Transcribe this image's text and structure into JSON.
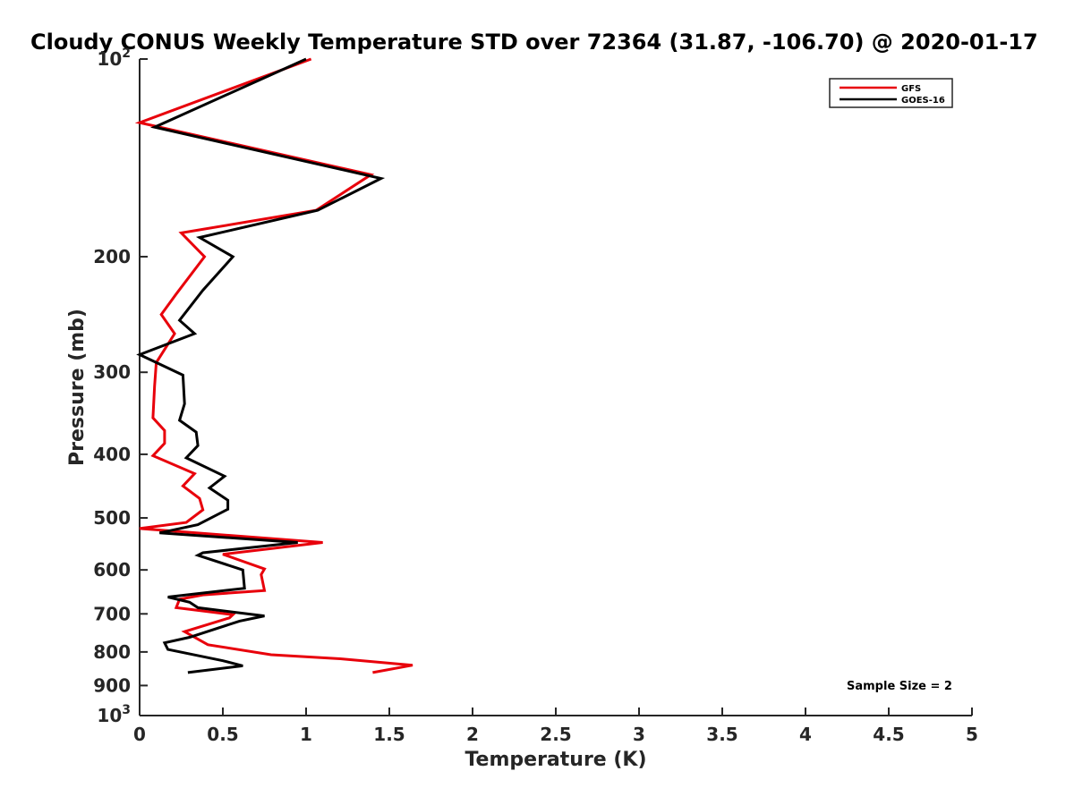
{
  "chart_data": {
    "type": "line",
    "title": "Cloudy CONUS Weekly Temperature STD over 72364 (31.87, -106.70) @ 2020-01-17",
    "xlabel": "Temperature (K)",
    "ylabel": "Pressure (mb)",
    "xlim": [
      0,
      5
    ],
    "ylim": [
      100,
      1000
    ],
    "y_scale": "log",
    "y_reversed": true,
    "x_ticks": [
      0,
      0.5,
      1,
      1.5,
      2,
      2.5,
      3,
      3.5,
      4,
      4.5,
      5
    ],
    "x_tick_labels": [
      "0",
      "0.5",
      "1",
      "1.5",
      "2",
      "2.5",
      "3",
      "3.5",
      "4",
      "4.5",
      "5"
    ],
    "y_ticks": [
      100,
      200,
      300,
      400,
      500,
      600,
      700,
      800,
      900,
      1000
    ],
    "y_tick_labels": [
      {
        "base": "10",
        "exp": "2"
      },
      {
        "base": "200",
        "exp": ""
      },
      {
        "base": "300",
        "exp": ""
      },
      {
        "base": "400",
        "exp": ""
      },
      {
        "base": "500",
        "exp": ""
      },
      {
        "base": "600",
        "exp": ""
      },
      {
        "base": "700",
        "exp": ""
      },
      {
        "base": "800",
        "exp": ""
      },
      {
        "base": "900",
        "exp": ""
      },
      {
        "base": "10",
        "exp": "3"
      }
    ],
    "grid": false,
    "legend_position": "top-right",
    "annotation": "Sample Size = 2",
    "series": [
      {
        "name": "GFS",
        "color": "#e8000b",
        "points": [
          [
            1.03,
            100
          ],
          [
            0.0,
            125
          ],
          [
            1.39,
            150
          ],
          [
            1.06,
            170
          ],
          [
            0.25,
            184
          ],
          [
            0.39,
            200
          ],
          [
            0.22,
            228
          ],
          [
            0.13,
            245
          ],
          [
            0.21,
            262
          ],
          [
            0.1,
            290
          ],
          [
            0.09,
            315
          ],
          [
            0.08,
            352
          ],
          [
            0.15,
            368
          ],
          [
            0.15,
            385
          ],
          [
            0.08,
            402
          ],
          [
            0.33,
            428
          ],
          [
            0.26,
            447
          ],
          [
            0.36,
            467
          ],
          [
            0.38,
            486
          ],
          [
            0.28,
            508
          ],
          [
            0.0,
            519
          ],
          [
            1.1,
            545
          ],
          [
            0.5,
            568
          ],
          [
            0.75,
            598
          ],
          [
            0.73,
            610
          ],
          [
            0.75,
            645
          ],
          [
            0.38,
            655
          ],
          [
            0.24,
            665
          ],
          [
            0.22,
            685
          ],
          [
            0.56,
            702
          ],
          [
            0.54,
            710
          ],
          [
            0.27,
            745
          ],
          [
            0.41,
            780
          ],
          [
            0.79,
            808
          ],
          [
            1.22,
            820
          ],
          [
            1.64,
            838
          ],
          [
            1.4,
            860
          ]
        ]
      },
      {
        "name": "GOES-16",
        "color": "#000000",
        "points": [
          [
            1.0,
            100
          ],
          [
            0.09,
            127
          ],
          [
            1.45,
            152
          ],
          [
            1.07,
            170
          ],
          [
            0.36,
            187
          ],
          [
            0.56,
            200
          ],
          [
            0.38,
            225
          ],
          [
            0.24,
            250
          ],
          [
            0.33,
            262
          ],
          [
            0.0,
            282
          ],
          [
            0.26,
            303
          ],
          [
            0.27,
            335
          ],
          [
            0.24,
            355
          ],
          [
            0.34,
            370
          ],
          [
            0.35,
            388
          ],
          [
            0.28,
            405
          ],
          [
            0.51,
            432
          ],
          [
            0.42,
            450
          ],
          [
            0.53,
            470
          ],
          [
            0.53,
            485
          ],
          [
            0.35,
            512
          ],
          [
            0.12,
            527
          ],
          [
            0.95,
            545
          ],
          [
            0.38,
            565
          ],
          [
            0.35,
            570
          ],
          [
            0.62,
            600
          ],
          [
            0.63,
            640
          ],
          [
            0.17,
            660
          ],
          [
            0.3,
            672
          ],
          [
            0.35,
            685
          ],
          [
            0.75,
            705
          ],
          [
            0.6,
            718
          ],
          [
            0.3,
            760
          ],
          [
            0.15,
            775
          ],
          [
            0.17,
            793
          ],
          [
            0.5,
            825
          ],
          [
            0.62,
            840
          ],
          [
            0.29,
            860
          ]
        ]
      }
    ]
  }
}
